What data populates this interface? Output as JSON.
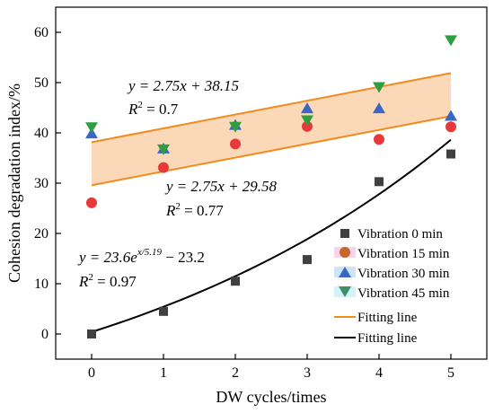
{
  "chart_data": {
    "type": "scatter",
    "xlabel": "DW cycles/times",
    "ylabel": "Cohesion degradation index/%",
    "xlim": [
      -0.5,
      5.5
    ],
    "ylim": [
      -5,
      65
    ],
    "xticks": [
      0,
      1,
      2,
      3,
      4,
      5
    ],
    "yticks": [
      0,
      10,
      20,
      30,
      40,
      50,
      60
    ],
    "grid": false,
    "legend_position": "bottom-right",
    "series": [
      {
        "name": "Vibration 0 min",
        "marker": "square",
        "color": "#404040",
        "x": [
          0,
          1,
          2,
          3,
          4,
          5
        ],
        "y": [
          0,
          4.5,
          10.5,
          14.8,
          30.3,
          35.8
        ]
      },
      {
        "name": "Vibration 15 min",
        "marker": "circle",
        "color": "#e8393a",
        "x": [
          0,
          1,
          2,
          3,
          4,
          5
        ],
        "y": [
          26.1,
          33.1,
          37.8,
          41.3,
          38.7,
          41.2
        ]
      },
      {
        "name": "Vibration 30 min",
        "marker": "triangle-up",
        "color": "#3a66c6",
        "x": [
          0,
          1,
          2,
          3,
          4,
          5
        ],
        "y": [
          39.8,
          36.8,
          41.5,
          44.8,
          44.8,
          43.3
        ]
      },
      {
        "name": "Vibration 45 min",
        "marker": "triangle-down",
        "color": "#2e9e3e",
        "x": [
          0,
          1,
          2,
          3,
          4,
          5
        ],
        "y": [
          41.2,
          36.8,
          41.3,
          42.6,
          49.2,
          58.5
        ]
      }
    ],
    "fits": [
      {
        "name": "Fitting line",
        "color": "#f28b1c",
        "kind": "linear",
        "slope": 2.75,
        "intercept": 38.15
      },
      {
        "name": "Fitting line",
        "color": "#f28b1c",
        "kind": "linear",
        "slope": 2.75,
        "intercept": 29.58
      },
      {
        "name": "Fitting line",
        "color": "#000000",
        "kind": "exponential",
        "a": 23.6,
        "b": 5.19,
        "c": -23.2
      }
    ],
    "band": {
      "color": "#fbd9b8",
      "upper_intercept": 38.15,
      "lower_intercept": 29.58,
      "slope": 2.75
    },
    "annotations": {
      "eq1_main": "y = 2.75x + 38.15",
      "eq1_r2_sym": "R",
      "eq1_r2_val": " = 0.7",
      "eq2_main": "y = 2.75x + 29.58",
      "eq2_r2_sym": "R",
      "eq2_r2_val": " = 0.77",
      "eq3_lhs": "y = 23.6e",
      "eq3_exp": "x/5.19",
      "eq3_rhs": " − 23.2",
      "eq3_r2_sym": "R",
      "eq3_r2_val": " = 0.97",
      "sup2": "2"
    }
  }
}
